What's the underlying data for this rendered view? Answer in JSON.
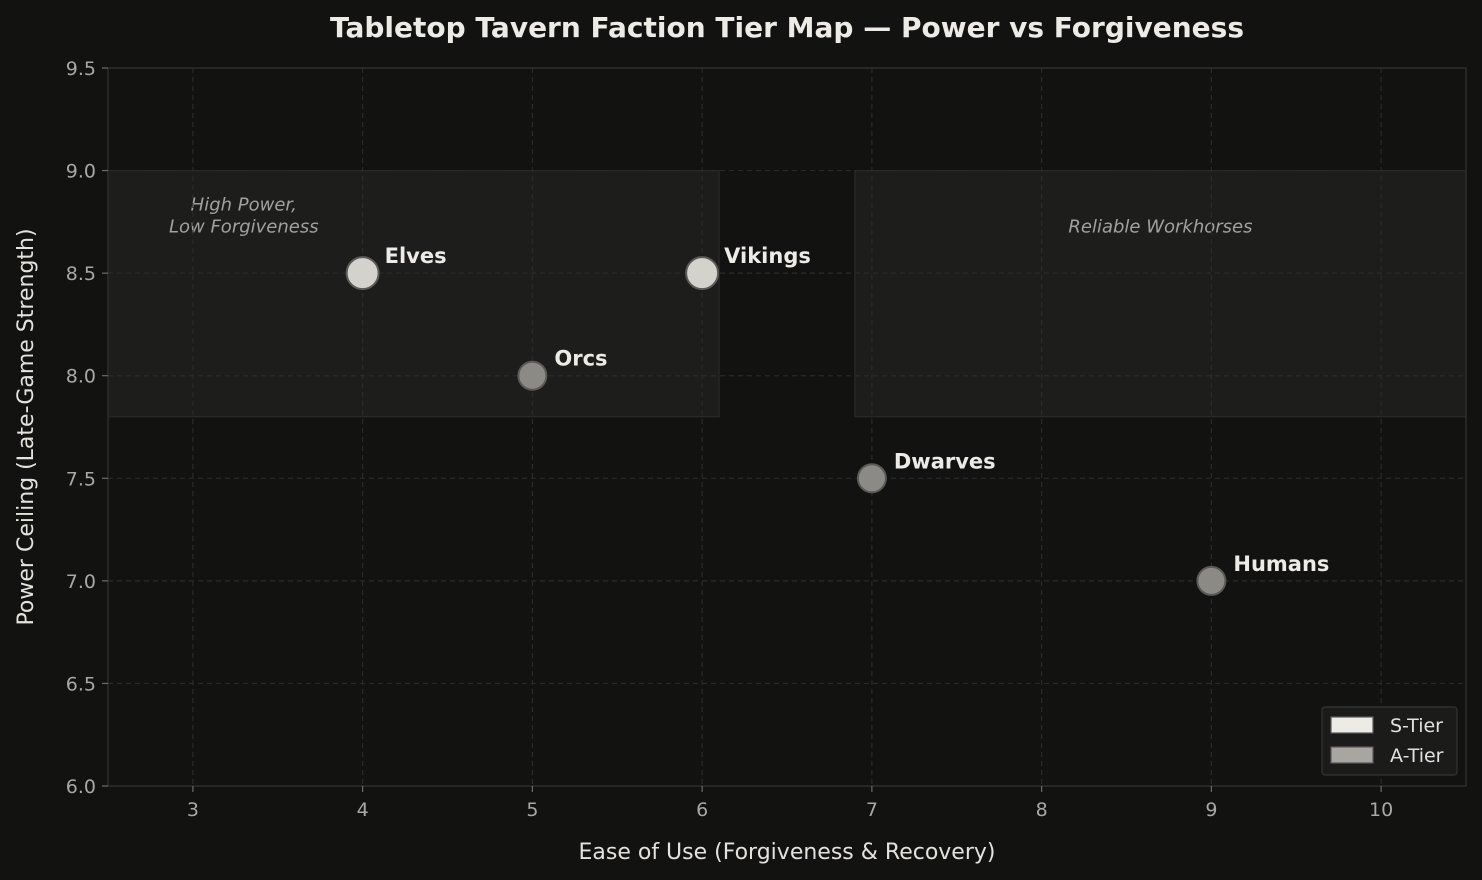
{
  "chart_data": {
    "type": "scatter",
    "title": "Tabletop Tavern Faction Tier Map — Power vs Forgiveness",
    "xlabel": "Ease of Use (Forgiveness & Recovery)",
    "ylabel": "Power Ceiling (Late-Game Strength)",
    "xlim": [
      2.5,
      10.5
    ],
    "ylim": [
      6.0,
      9.5
    ],
    "xticks": [
      3,
      4,
      5,
      6,
      7,
      8,
      9,
      10
    ],
    "yticks": [
      6.0,
      6.5,
      7.0,
      7.5,
      8.0,
      8.5,
      9.0,
      9.5
    ],
    "xtick_labels": [
      "3",
      "4",
      "5",
      "6",
      "7",
      "8",
      "9",
      "10"
    ],
    "ytick_labels": [
      "6.0",
      "6.5",
      "7.0",
      "7.5",
      "8.0",
      "8.5",
      "9.0",
      "9.5"
    ],
    "grid": true,
    "legend_position": "bottom-right",
    "series": [
      {
        "name": "S-Tier",
        "color": "#d3d2cd",
        "points": [
          {
            "label": "Elves",
            "x": 4,
            "y": 8.5
          },
          {
            "label": "Vikings",
            "x": 6,
            "y": 8.5
          }
        ]
      },
      {
        "name": "A-Tier",
        "color": "#8c8a85",
        "points": [
          {
            "label": "Orcs",
            "x": 5,
            "y": 8.0
          },
          {
            "label": "Dwarves",
            "x": 7,
            "y": 7.5
          },
          {
            "label": "Humans",
            "x": 9,
            "y": 7.0
          }
        ]
      }
    ],
    "regions": [
      {
        "label_lines": [
          "High Power,",
          "Low Forgiveness"
        ],
        "x": [
          2.5,
          6.1
        ],
        "y": [
          7.8,
          9.0
        ]
      },
      {
        "label_lines": [
          "Reliable Workhorses"
        ],
        "x": [
          6.9,
          10.5
        ],
        "y": [
          7.8,
          9.0
        ]
      }
    ]
  }
}
